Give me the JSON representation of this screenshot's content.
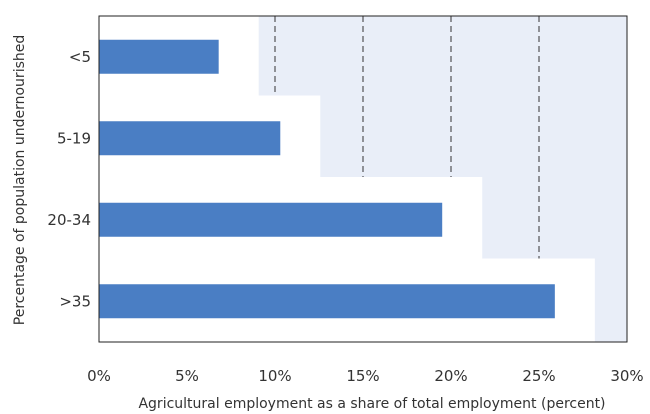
{
  "chart_data": {
    "type": "bar",
    "orientation": "horizontal",
    "categories": [
      "<5",
      "5-19",
      "20-34",
      ">35"
    ],
    "values": [
      6.8,
      10.3,
      19.5,
      25.9
    ],
    "xlabel": "Agricultural employment as a share of total employment (percent)",
    "ylabel": "Percentage of population undernourished",
    "xlim": [
      0,
      30
    ],
    "x_ticks": [
      0,
      5,
      10,
      15,
      20,
      25,
      30
    ],
    "x_tick_labels": [
      "0%",
      "5%",
      "10%",
      "15%",
      "20%",
      "25%",
      "30%"
    ],
    "grid": "vertical dashed",
    "colors": {
      "bar": "#4A7EC4",
      "background_shade": "#E9EEF8",
      "gridline": "#333333",
      "text": "#333333"
    }
  }
}
